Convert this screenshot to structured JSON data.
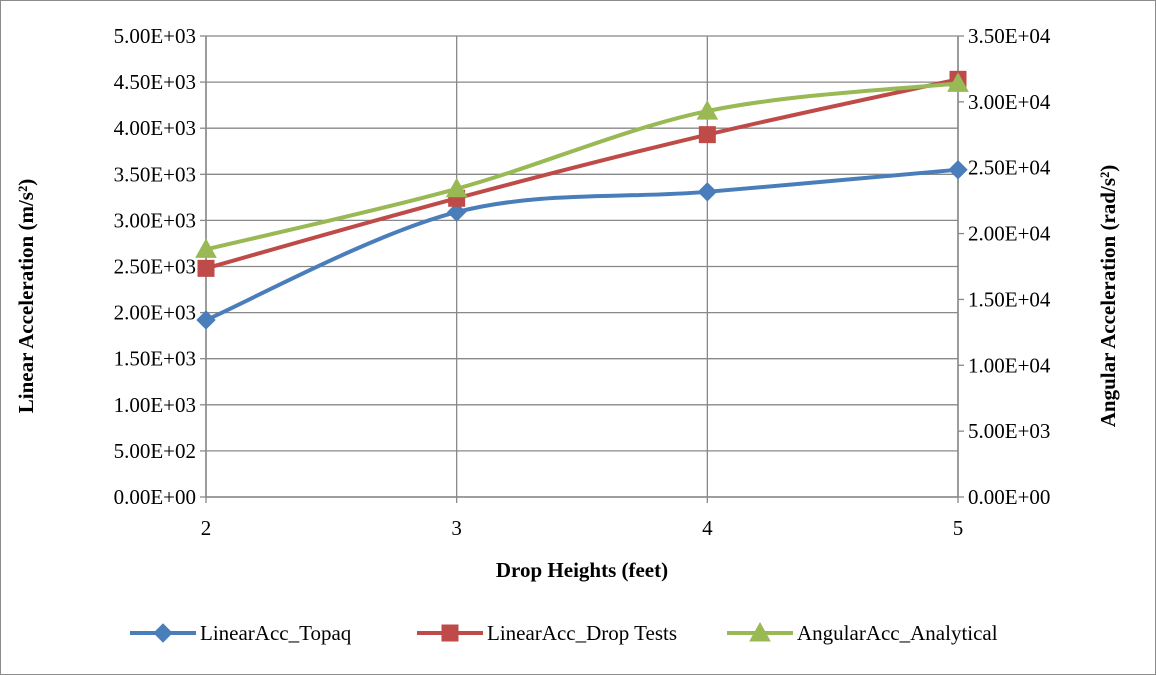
{
  "chart_data": {
    "type": "line",
    "title": "",
    "xlabel": "Drop Heights (feet)",
    "ylabel": "Linear Acceleration (m/s²)",
    "ylabel_right": "Angular Acceleration (rad/s²)",
    "x": [
      2,
      3,
      4,
      5
    ],
    "x_ticks": [
      "2",
      "3",
      "4",
      "5"
    ],
    "ylim": [
      0,
      5000
    ],
    "ylim_right": [
      0,
      35000
    ],
    "y_ticks_left": [
      "0.00E+00",
      "5.00E+02",
      "1.00E+03",
      "1.50E+03",
      "2.00E+03",
      "2.50E+03",
      "3.00E+03",
      "3.50E+03",
      "4.00E+03",
      "4.50E+03",
      "5.00E+03"
    ],
    "y_ticks_right": [
      "0.00E+00",
      "5.00E+03",
      "1.00E+04",
      "1.50E+04",
      "2.00E+04",
      "2.50E+04",
      "3.00E+04",
      "3.50E+04"
    ],
    "grid": true,
    "legend_position": "bottom",
    "smooth_lines": true,
    "series": [
      {
        "name": "LinearAcc_Topaq",
        "axis": "left",
        "marker": "diamond",
        "color": "#4a7ebb",
        "values": [
          1920,
          3090,
          3310,
          3550
        ]
      },
      {
        "name": "LinearAcc_Drop Tests",
        "axis": "left",
        "marker": "square",
        "color": "#be4b48",
        "values": [
          2480,
          3240,
          3930,
          4530
        ]
      },
      {
        "name": "AngularAcc_Analytical",
        "axis": "right",
        "marker": "triangle",
        "color": "#98b954",
        "values": [
          18800,
          23400,
          29300,
          31400
        ]
      }
    ]
  }
}
